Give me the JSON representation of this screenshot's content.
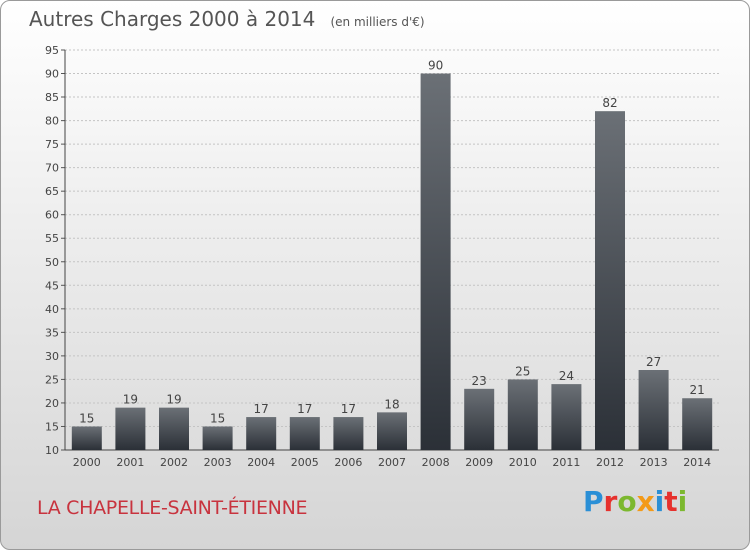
{
  "header": {
    "title": "Autres Charges 2000 à 2014",
    "subtitle": "(en milliers d'€)"
  },
  "footer": {
    "commune": "LA CHAPELLE-SAINT-ÉTIENNE",
    "logo_text": "Proxiti"
  },
  "colors": {
    "bar_top": "#6b7076",
    "bar_bottom": "#2b3037",
    "title": "#555555",
    "commune": "#c8333e"
  },
  "chart_data": {
    "type": "bar",
    "title": "Autres Charges 2000 à 2014",
    "subtitle": "(en milliers d'€)",
    "xlabel": "",
    "ylabel": "",
    "ylim": [
      10,
      95
    ],
    "yticks": [
      10,
      15,
      20,
      25,
      30,
      35,
      40,
      45,
      50,
      55,
      60,
      65,
      70,
      75,
      80,
      85,
      90,
      95
    ],
    "grid": true,
    "legend": "none",
    "categories": [
      "2000",
      "2001",
      "2002",
      "2003",
      "2004",
      "2005",
      "2006",
      "2007",
      "2008",
      "2009",
      "2010",
      "2011",
      "2012",
      "2013",
      "2014"
    ],
    "values": [
      15,
      19,
      19,
      15,
      17,
      17,
      17,
      18,
      90,
      23,
      25,
      24,
      82,
      27,
      21
    ]
  }
}
